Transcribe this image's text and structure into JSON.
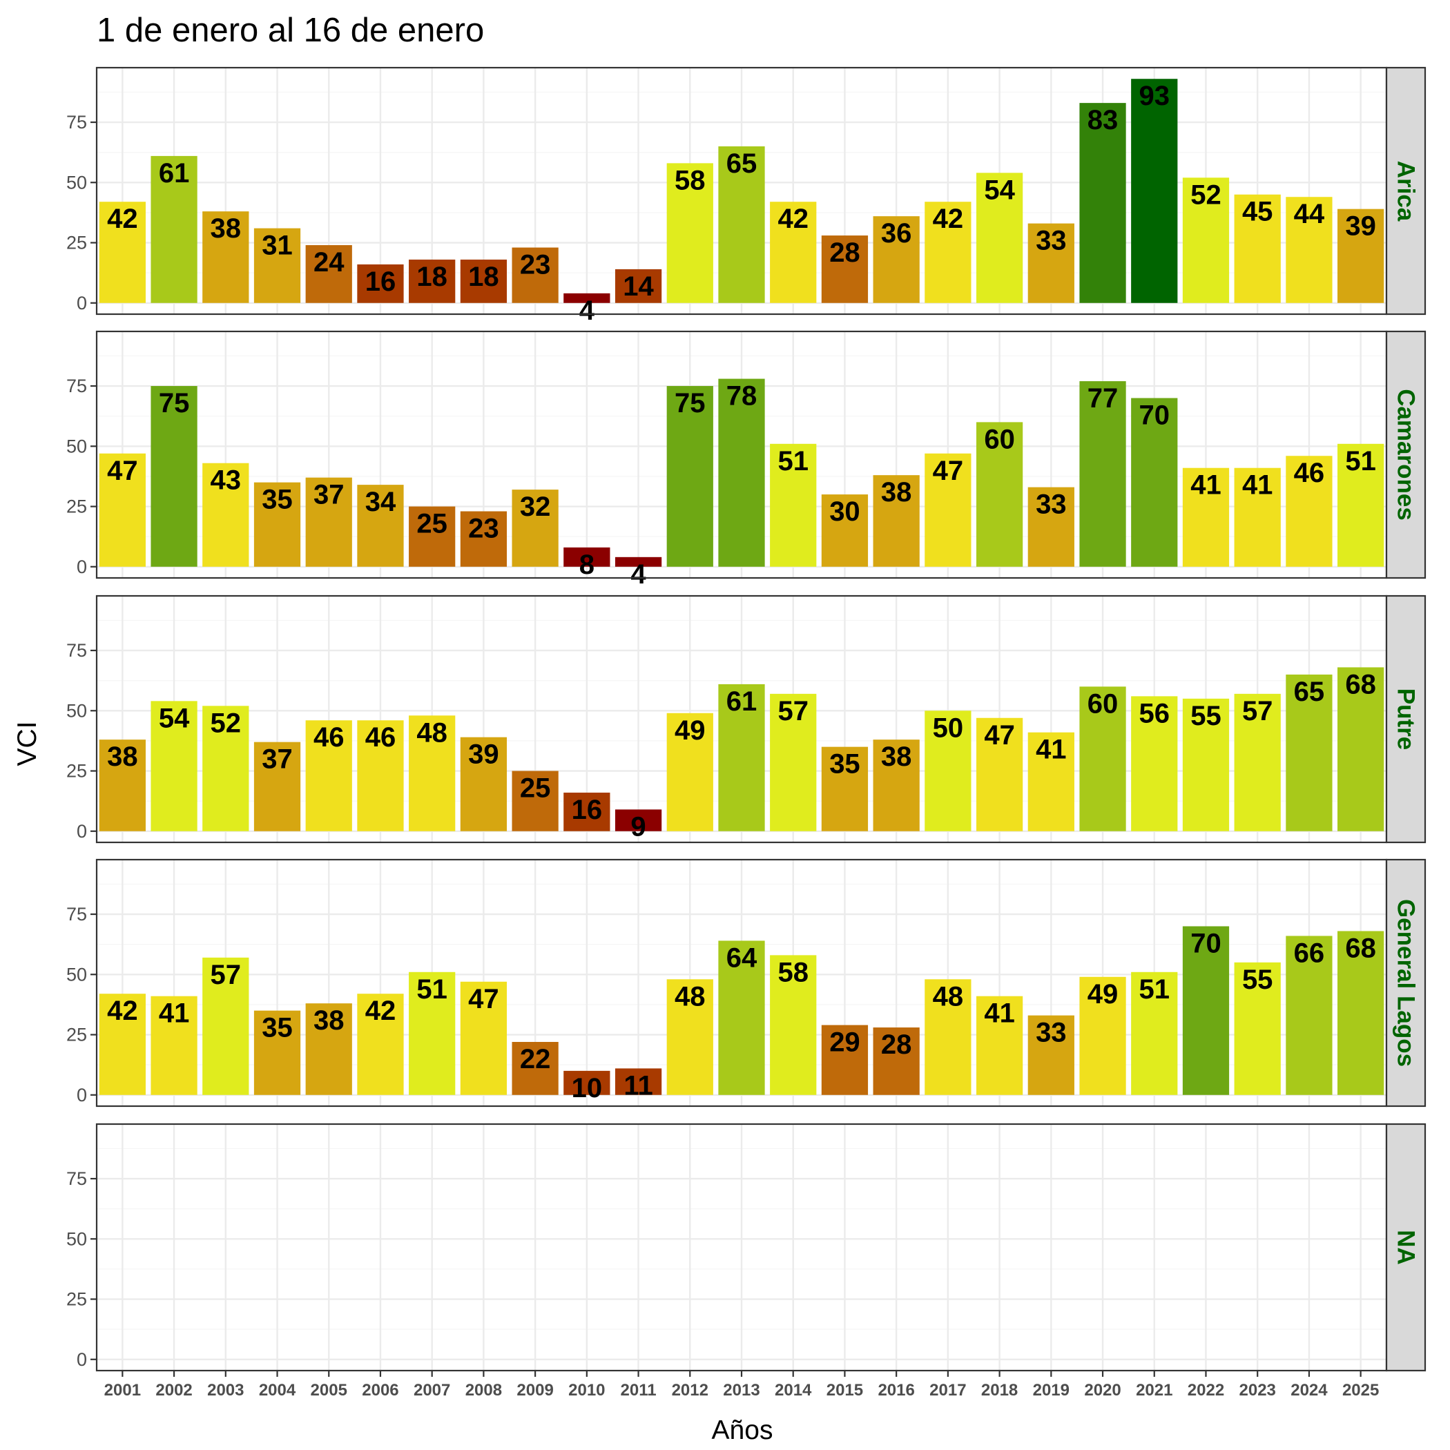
{
  "chart_data": {
    "type": "bar",
    "title": "1 de enero al 16 de enero",
    "xlabel": "Años",
    "ylabel": "VCI",
    "ylim": [
      -4.65,
      97.65
    ],
    "yticks": [
      0,
      25,
      50,
      75
    ],
    "grid": true,
    "categories": [
      "2001",
      "2002",
      "2003",
      "2004",
      "2005",
      "2006",
      "2007",
      "2008",
      "2009",
      "2010",
      "2011",
      "2012",
      "2013",
      "2014",
      "2015",
      "2016",
      "2017",
      "2018",
      "2019",
      "2020",
      "2021",
      "2022",
      "2023",
      "2024",
      "2025"
    ],
    "panels": [
      {
        "name": "Arica",
        "values": [
          42,
          61,
          38,
          31,
          24,
          16,
          18,
          18,
          23,
          4,
          14,
          58,
          65,
          42,
          28,
          36,
          42,
          54,
          33,
          83,
          93,
          52,
          45,
          44,
          39
        ]
      },
      {
        "name": "Camarones",
        "values": [
          47,
          75,
          43,
          35,
          37,
          34,
          25,
          23,
          32,
          8,
          4,
          75,
          78,
          51,
          30,
          38,
          47,
          60,
          33,
          77,
          70,
          41,
          41,
          46,
          51
        ]
      },
      {
        "name": "Putre",
        "values": [
          38,
          54,
          52,
          37,
          46,
          46,
          48,
          39,
          25,
          16,
          9,
          49,
          61,
          57,
          35,
          38,
          50,
          47,
          41,
          60,
          56,
          55,
          57,
          65,
          68
        ]
      },
      {
        "name": "General Lagos",
        "values": [
          42,
          41,
          57,
          35,
          38,
          42,
          51,
          47,
          22,
          10,
          11,
          48,
          64,
          58,
          29,
          28,
          48,
          41,
          33,
          49,
          51,
          70,
          55,
          66,
          68
        ]
      },
      {
        "name": "NA",
        "values": []
      }
    ],
    "color_scale": [
      {
        "min": 0,
        "color": "#8b0000"
      },
      {
        "min": 10,
        "color": "#a83a00"
      },
      {
        "min": 20,
        "color": "#bf6a0a"
      },
      {
        "min": 30,
        "color": "#d6a611"
      },
      {
        "min": 40,
        "color": "#f0e01e"
      },
      {
        "min": 50,
        "color": "#e0ec1e"
      },
      {
        "min": 60,
        "color": "#a8c91a"
      },
      {
        "min": 70,
        "color": "#6ea814"
      },
      {
        "min": 80,
        "color": "#338209"
      },
      {
        "min": 90,
        "color": "#006400"
      }
    ]
  },
  "colors": {
    "strip_background": "#d9d9d9",
    "strip_text": "#006400",
    "panel_border": "#333333",
    "grid_major": "#ebebeb",
    "grid_minor": "#f5f5f5"
  }
}
